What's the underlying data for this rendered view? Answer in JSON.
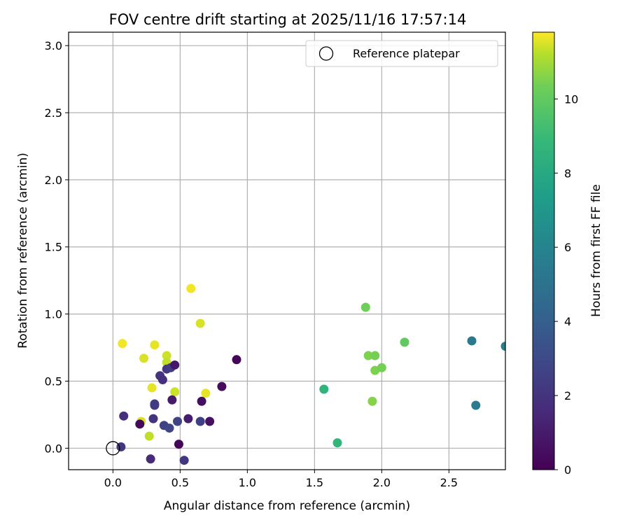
{
  "chart_data": {
    "type": "scatter",
    "title": "FOV centre drift starting at 2025/11/16 17:57:14",
    "xlabel": "Angular distance from reference (arcmin)",
    "ylabel": "Rotation from reference (arcmin)",
    "xlim": [
      -0.33,
      2.92
    ],
    "ylim": [
      -0.16,
      3.1
    ],
    "x_ticks": [
      0.0,
      0.5,
      1.0,
      1.5,
      2.0,
      2.5
    ],
    "x_tick_labels": [
      "0.0",
      "0.5",
      "1.0",
      "1.5",
      "2.0",
      "2.5"
    ],
    "y_ticks": [
      0.0,
      0.5,
      1.0,
      1.5,
      2.0,
      2.5,
      3.0
    ],
    "y_tick_labels": [
      "0.0",
      "0.5",
      "1.0",
      "1.5",
      "2.0",
      "2.5",
      "3.0"
    ],
    "grid": true,
    "legend": {
      "position": "upper-right",
      "entries": [
        "Reference platepar"
      ]
    },
    "reference_point": {
      "x": 0.0,
      "y": 0.0,
      "label": "Reference platepar"
    },
    "colorbar": {
      "label": "Hours from first FF file",
      "colormap": "viridis",
      "range": [
        0,
        11.8
      ],
      "ticks": [
        0,
        2,
        4,
        6,
        8,
        10
      ],
      "tick_labels": [
        "0",
        "2",
        "4",
        "6",
        "8",
        "10"
      ]
    },
    "points": [
      {
        "x": 0.07,
        "y": 0.78,
        "hours": 11.7
      },
      {
        "x": 0.23,
        "y": 0.67,
        "hours": 11.5
      },
      {
        "x": 0.31,
        "y": 0.77,
        "hours": 11.6
      },
      {
        "x": 0.4,
        "y": 0.69,
        "hours": 11.4
      },
      {
        "x": 0.4,
        "y": 0.64,
        "hours": 11.3
      },
      {
        "x": 0.58,
        "y": 1.19,
        "hours": 11.7
      },
      {
        "x": 0.65,
        "y": 0.93,
        "hours": 11.5
      },
      {
        "x": 0.29,
        "y": 0.45,
        "hours": 11.6
      },
      {
        "x": 0.46,
        "y": 0.42,
        "hours": 11.4
      },
      {
        "x": 0.69,
        "y": 0.41,
        "hours": 11.6
      },
      {
        "x": 0.21,
        "y": 0.2,
        "hours": 11.5
      },
      {
        "x": 0.27,
        "y": 0.09,
        "hours": 11.3
      },
      {
        "x": 0.2,
        "y": 0.18,
        "hours": 0.3
      },
      {
        "x": 0.08,
        "y": 0.24,
        "hours": 1.8
      },
      {
        "x": 0.06,
        "y": 0.01,
        "hours": 2.2
      },
      {
        "x": 0.28,
        "y": -0.08,
        "hours": 1.6
      },
      {
        "x": 0.3,
        "y": 0.22,
        "hours": 2.0
      },
      {
        "x": 0.31,
        "y": 0.33,
        "hours": 2.5
      },
      {
        "x": 0.31,
        "y": 0.32,
        "hours": 2.4
      },
      {
        "x": 0.35,
        "y": 0.54,
        "hours": 2.0
      },
      {
        "x": 0.37,
        "y": 0.51,
        "hours": 1.8
      },
      {
        "x": 0.38,
        "y": 0.17,
        "hours": 2.6
      },
      {
        "x": 0.42,
        "y": 0.15,
        "hours": 2.8
      },
      {
        "x": 0.4,
        "y": 0.59,
        "hours": 2.1
      },
      {
        "x": 0.43,
        "y": 0.6,
        "hours": 2.4
      },
      {
        "x": 0.46,
        "y": 0.62,
        "hours": 0.8
      },
      {
        "x": 0.44,
        "y": 0.36,
        "hours": 0.9
      },
      {
        "x": 0.48,
        "y": 0.2,
        "hours": 2.7
      },
      {
        "x": 0.49,
        "y": 0.03,
        "hours": 0.2
      },
      {
        "x": 0.53,
        "y": -0.09,
        "hours": 2.2
      },
      {
        "x": 0.56,
        "y": 0.22,
        "hours": 1.1
      },
      {
        "x": 0.65,
        "y": 0.2,
        "hours": 2.5
      },
      {
        "x": 0.66,
        "y": 0.35,
        "hours": 0.5
      },
      {
        "x": 0.72,
        "y": 0.2,
        "hours": 0.6
      },
      {
        "x": 0.81,
        "y": 0.46,
        "hours": 0.4
      },
      {
        "x": 0.92,
        "y": 0.66,
        "hours": 0.2
      },
      {
        "x": 1.57,
        "y": 0.44,
        "hours": 8.6
      },
      {
        "x": 1.67,
        "y": 0.04,
        "hours": 8.7
      },
      {
        "x": 1.88,
        "y": 1.05,
        "hours": 10.3
      },
      {
        "x": 1.9,
        "y": 0.69,
        "hours": 10.5
      },
      {
        "x": 1.95,
        "y": 0.69,
        "hours": 10.4
      },
      {
        "x": 1.95,
        "y": 0.58,
        "hours": 10.5
      },
      {
        "x": 2.0,
        "y": 0.6,
        "hours": 10.4
      },
      {
        "x": 1.93,
        "y": 0.35,
        "hours": 10.6
      },
      {
        "x": 2.17,
        "y": 0.79,
        "hours": 10.0
      },
      {
        "x": 2.67,
        "y": 0.8,
        "hours": 5.4
      },
      {
        "x": 2.7,
        "y": 0.32,
        "hours": 5.5
      },
      {
        "x": 2.92,
        "y": 0.76,
        "hours": 5.6
      }
    ]
  }
}
